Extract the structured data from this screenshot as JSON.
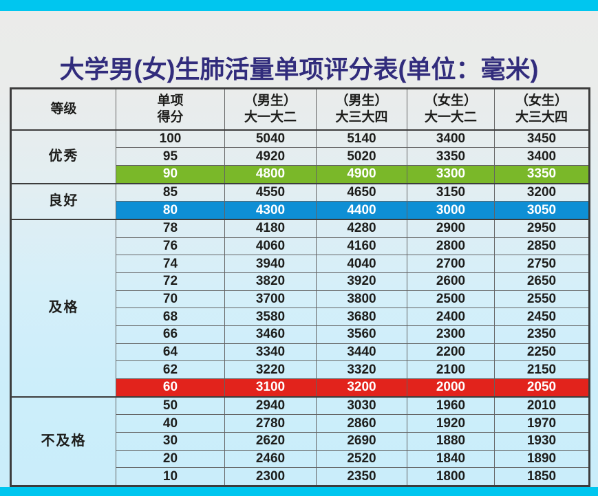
{
  "page": {
    "title": "大学男(女)生肺活量单项评分表(单位：毫米)"
  },
  "colors": {
    "accent_bar": "#00c6ef",
    "title_text": "#312c7c",
    "highlight_green": "#7ab829",
    "highlight_blue": "#0e8fd5",
    "highlight_red": "#e2231c",
    "grid_line": "#636363",
    "cell_text": "#1d1d1b",
    "background_top": "#ebebe9",
    "background_bottom": "#c9edfa"
  },
  "table": {
    "columns": [
      {
        "l1": "等级",
        "l2": ""
      },
      {
        "l1": "单项",
        "l2": "得分"
      },
      {
        "l1": "（男生）",
        "l2": "大一大二"
      },
      {
        "l1": "（男生）",
        "l2": "大三大四"
      },
      {
        "l1": "（女生）",
        "l2": "大一大二"
      },
      {
        "l1": "（女生）",
        "l2": "大三大四"
      }
    ],
    "groups": [
      {
        "grade": "优秀",
        "rows": [
          {
            "score": "100",
            "values": [
              "5040",
              "5140",
              "3400",
              "3450"
            ],
            "highlight": null
          },
          {
            "score": "95",
            "values": [
              "4920",
              "5020",
              "3350",
              "3400"
            ],
            "highlight": null
          },
          {
            "score": "90",
            "values": [
              "4800",
              "4900",
              "3300",
              "3350"
            ],
            "highlight": "green"
          }
        ]
      },
      {
        "grade": "良好",
        "rows": [
          {
            "score": "85",
            "values": [
              "4550",
              "4650",
              "3150",
              "3200"
            ],
            "highlight": null
          },
          {
            "score": "80",
            "values": [
              "4300",
              "4400",
              "3000",
              "3050"
            ],
            "highlight": "blue"
          }
        ]
      },
      {
        "grade": "及格",
        "rows": [
          {
            "score": "78",
            "values": [
              "4180",
              "4280",
              "2900",
              "2950"
            ],
            "highlight": null
          },
          {
            "score": "76",
            "values": [
              "4060",
              "4160",
              "2800",
              "2850"
            ],
            "highlight": null
          },
          {
            "score": "74",
            "values": [
              "3940",
              "4040",
              "2700",
              "2750"
            ],
            "highlight": null
          },
          {
            "score": "72",
            "values": [
              "3820",
              "3920",
              "2600",
              "2650"
            ],
            "highlight": null
          },
          {
            "score": "70",
            "values": [
              "3700",
              "3800",
              "2500",
              "2550"
            ],
            "highlight": null
          },
          {
            "score": "68",
            "values": [
              "3580",
              "3680",
              "2400",
              "2450"
            ],
            "highlight": null
          },
          {
            "score": "66",
            "values": [
              "3460",
              "3560",
              "2300",
              "2350"
            ],
            "highlight": null
          },
          {
            "score": "64",
            "values": [
              "3340",
              "3440",
              "2200",
              "2250"
            ],
            "highlight": null
          },
          {
            "score": "62",
            "values": [
              "3220",
              "3320",
              "2100",
              "2150"
            ],
            "highlight": null
          },
          {
            "score": "60",
            "values": [
              "3100",
              "3200",
              "2000",
              "2050"
            ],
            "highlight": "red"
          }
        ]
      },
      {
        "grade": "不及格",
        "rows": [
          {
            "score": "50",
            "values": [
              "2940",
              "3030",
              "1960",
              "2010"
            ],
            "highlight": null
          },
          {
            "score": "40",
            "values": [
              "2780",
              "2860",
              "1920",
              "1970"
            ],
            "highlight": null
          },
          {
            "score": "30",
            "values": [
              "2620",
              "2690",
              "1880",
              "1930"
            ],
            "highlight": null
          },
          {
            "score": "20",
            "values": [
              "2460",
              "2520",
              "1840",
              "1890"
            ],
            "highlight": null
          },
          {
            "score": "10",
            "values": [
              "2300",
              "2350",
              "1800",
              "1850"
            ],
            "highlight": null
          }
        ]
      }
    ]
  }
}
